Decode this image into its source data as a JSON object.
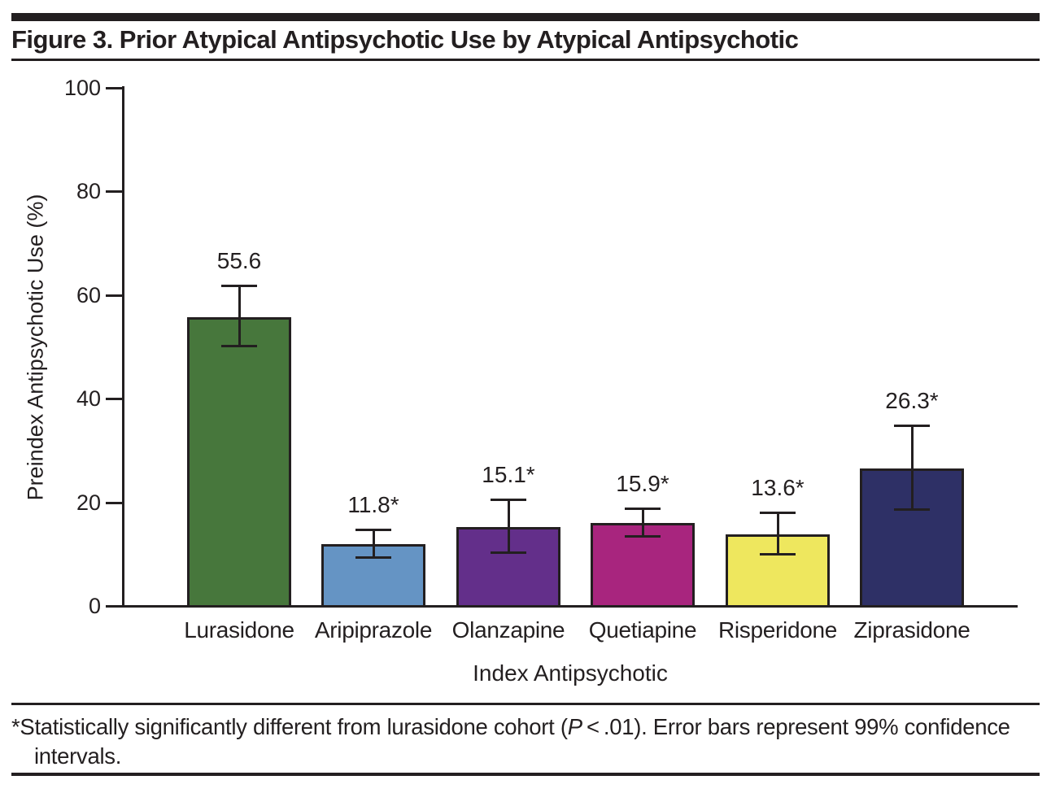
{
  "title": "Figure 3. Prior Atypical Antipsychotic Use by Atypical Antipsychotic",
  "chart_data": {
    "type": "bar",
    "categories": [
      "Lurasidone",
      "Aripiprazole",
      "Olanzapine",
      "Quetiapine",
      "Risperidone",
      "Ziprasidone"
    ],
    "values": [
      55.6,
      11.8,
      15.1,
      15.9,
      13.6,
      26.3
    ],
    "value_labels": [
      "55.6",
      "11.8*",
      "15.1*",
      "15.9*",
      "13.6*",
      "26.3*"
    ],
    "ci_low": [
      49.8,
      9.0,
      9.9,
      13.0,
      9.5,
      18.2
    ],
    "ci_high": [
      61.9,
      14.7,
      20.6,
      18.9,
      18.0,
      34.8
    ],
    "bar_colors": [
      "#47773C",
      "#6594C4",
      "#632F8A",
      "#A8257E",
      "#EEE75E",
      "#2E3066"
    ],
    "xlabel": "Index Antipsychotic",
    "ylabel": "Preindex Antipsychotic Use (%)",
    "ylim": [
      0,
      100
    ],
    "yticks": [
      0,
      20,
      40,
      60,
      80,
      100
    ],
    "grid": false,
    "legend": "none",
    "error_bars": "99% confidence intervals"
  },
  "footnote": {
    "part1": "*Statistically significantly different from lurasidone cohort (",
    "p_italic": "P",
    "part2": " < .01). Error bars represent 99% confidence intervals."
  },
  "colors": {
    "ink": "#231F20",
    "background": "#FFFFFF"
  }
}
